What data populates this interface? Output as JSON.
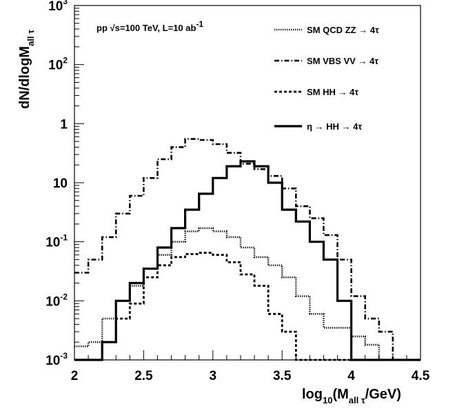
{
  "chart_data": {
    "type": "line",
    "style": "histogram-step",
    "info": {
      "text": "pp √s=100 TeV, L=10 ab",
      "sup": "-1"
    },
    "xaxis": {
      "title": "log",
      "title_sub": "10",
      "title_tail": "(M",
      "title_sub2": "all τ",
      "title_end": "/GeV)",
      "range": [
        2,
        4.5
      ],
      "ticks": [
        "2",
        "2.5",
        "3",
        "3.5",
        "4",
        "4.5"
      ]
    },
    "yaxis": {
      "title": "dN/dlogM",
      "title_sub": "all τ",
      "scale": "log",
      "range": [
        0.001,
        1000
      ],
      "tick_bases": [
        "10",
        "10",
        "1",
        "10",
        "10",
        "10",
        "10"
      ],
      "tick_exps": [
        "3",
        "2",
        "",
        "",
        "-1",
        "-2",
        "-3"
      ]
    },
    "bin_edges": [
      2.0,
      2.1,
      2.2,
      2.3,
      2.4,
      2.5,
      2.6,
      2.7,
      2.8,
      2.9,
      3.0,
      3.1,
      3.2,
      3.3,
      3.4,
      3.5,
      3.6,
      3.7,
      3.8,
      3.9,
      4.0,
      4.1,
      4.2,
      4.3,
      4.4,
      4.5
    ],
    "series": [
      {
        "name": "SM QCD ZZ → 4τ",
        "style": "dotted",
        "values": [
          0.0017,
          0.002,
          0.005,
          0.01,
          0.018,
          0.035,
          0.06,
          0.1,
          0.15,
          0.17,
          0.15,
          0.12,
          0.08,
          0.055,
          0.04,
          0.025,
          0.012,
          0.006,
          0.0035,
          0.0035,
          0.0025,
          0.0018,
          0.001,
          0.001,
          0.001
        ]
      },
      {
        "name": "SM VBS VV → 4τ",
        "style": "dash-dot",
        "values": [
          0.03,
          0.05,
          0.12,
          0.3,
          0.6,
          1.2,
          2.5,
          4.0,
          5.5,
          5.3,
          4.5,
          3.2,
          2.1,
          1.7,
          1.3,
          0.8,
          0.4,
          0.25,
          0.13,
          0.05,
          0.012,
          0.005,
          0.003,
          0.001,
          0.001
        ]
      },
      {
        "name": "SM HH → 4τ",
        "style": "dashed",
        "values": [
          0.001,
          0.001,
          0.002,
          0.005,
          0.009,
          0.025,
          0.04,
          0.055,
          0.062,
          0.065,
          0.06,
          0.045,
          0.028,
          0.018,
          0.006,
          0.003,
          0.001,
          0.001,
          0.001,
          0.001,
          0.001,
          0.001,
          0.001,
          0.001,
          0.001
        ]
      },
      {
        "name": "η → HH → 4τ",
        "style": "solid",
        "values": [
          0.001,
          0.001,
          0.002,
          0.01,
          0.02,
          0.035,
          0.08,
          0.17,
          0.35,
          0.65,
          1.2,
          1.9,
          2.3,
          1.9,
          1.0,
          0.35,
          0.22,
          0.1,
          0.05,
          0.01,
          0.001,
          0.001,
          0.001,
          0.001,
          0.001
        ]
      }
    ]
  }
}
